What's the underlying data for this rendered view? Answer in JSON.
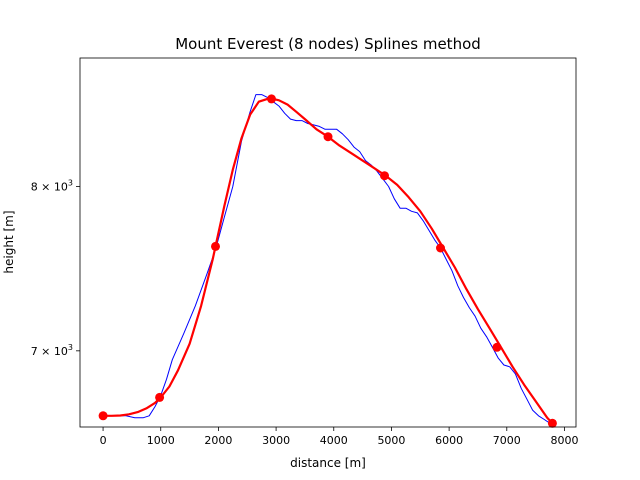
{
  "chart_data": {
    "type": "line",
    "title": "Mount Everest (8 nodes) Splines method",
    "xlabel": "distance [m]",
    "ylabel": "height [m]",
    "xlim": [
      -400,
      8200
    ],
    "ylim": [
      6580,
      8880
    ],
    "y_scale": "log",
    "grid": false,
    "legend": "none",
    "x_ticks": [
      {
        "value": 0,
        "label": "0"
      },
      {
        "value": 1000,
        "label": "1000"
      },
      {
        "value": 2000,
        "label": "2000"
      },
      {
        "value": 3000,
        "label": "3000"
      },
      {
        "value": 4000,
        "label": "4000"
      },
      {
        "value": 5000,
        "label": "5000"
      },
      {
        "value": 6000,
        "label": "6000"
      },
      {
        "value": 7000,
        "label": "7000"
      },
      {
        "value": 8000,
        "label": "8000"
      }
    ],
    "y_ticks": [
      {
        "value": 7000,
        "base": "7 × 10",
        "exp": "3"
      },
      {
        "value": 8000,
        "base": "8 × 10",
        "exp": "3"
      }
    ],
    "series": [
      {
        "role": "profile",
        "color": "#0000ff",
        "x": [
          0,
          200,
          400,
          550,
          700,
          800,
          900,
          1000,
          1100,
          1200,
          1400,
          1600,
          1800,
          1950,
          2100,
          2250,
          2400,
          2550,
          2650,
          2750,
          2850,
          2950,
          3050,
          3150,
          3250,
          3350,
          3450,
          3550,
          3650,
          3750,
          3850,
          3950,
          4050,
          4150,
          4250,
          4350,
          4450,
          4550,
          4650,
          4750,
          4850,
          4950,
          5050,
          5150,
          5250,
          5350,
          5450,
          5550,
          5650,
          5750,
          5850,
          5950,
          6050,
          6150,
          6250,
          6350,
          6450,
          6550,
          6650,
          6750,
          6850,
          6950,
          7050,
          7150,
          7250,
          7350,
          7450,
          7550,
          7650,
          7750,
          7790
        ],
        "y": [
          6640,
          6640,
          6640,
          6630,
          6630,
          6640,
          6690,
          6750,
          6840,
          6950,
          7100,
          7260,
          7450,
          7600,
          7800,
          8000,
          8300,
          8500,
          8620,
          8620,
          8600,
          8570,
          8540,
          8490,
          8450,
          8440,
          8440,
          8420,
          8410,
          8400,
          8380,
          8380,
          8380,
          8350,
          8310,
          8260,
          8230,
          8170,
          8140,
          8100,
          8050,
          8000,
          7920,
          7860,
          7860,
          7840,
          7830,
          7780,
          7720,
          7660,
          7610,
          7540,
          7470,
          7380,
          7310,
          7250,
          7200,
          7130,
          7080,
          7020,
          6960,
          6920,
          6910,
          6870,
          6790,
          6730,
          6670,
          6640,
          6620,
          6600,
          6600
        ]
      },
      {
        "role": "spline",
        "color": "#ff0000",
        "x": [
          0,
          150,
          300,
          450,
          600,
          750,
          900,
          1000,
          1150,
          1300,
          1500,
          1700,
          1900,
          1950,
          2100,
          2250,
          2400,
          2550,
          2700,
          2850,
          2950,
          3050,
          3200,
          3350,
          3500,
          3700,
          3900,
          4100,
          4300,
          4500,
          4700,
          4900,
          5100,
          5300,
          5500,
          5700,
          5900,
          6100,
          6300,
          6500,
          6700,
          6900,
          7100,
          7300,
          7500,
          7700,
          7790
        ],
        "y": [
          6640,
          6640,
          6642,
          6648,
          6660,
          6680,
          6710,
          6740,
          6800,
          6890,
          7040,
          7260,
          7540,
          7620,
          7870,
          8110,
          8320,
          8480,
          8570,
          8590,
          8590,
          8580,
          8550,
          8500,
          8450,
          8380,
          8330,
          8270,
          8220,
          8170,
          8120,
          8070,
          8010,
          7930,
          7840,
          7730,
          7610,
          7490,
          7360,
          7240,
          7130,
          7020,
          6910,
          6810,
          6720,
          6630,
          6600
        ]
      }
    ],
    "nodes": {
      "color": "#ff0000",
      "x": [
        0,
        980,
        1950,
        2920,
        3900,
        4880,
        5850,
        6830,
        7790
      ],
      "y": [
        6640,
        6740,
        7620,
        8590,
        8330,
        8070,
        7610,
        7020,
        6600
      ]
    }
  }
}
